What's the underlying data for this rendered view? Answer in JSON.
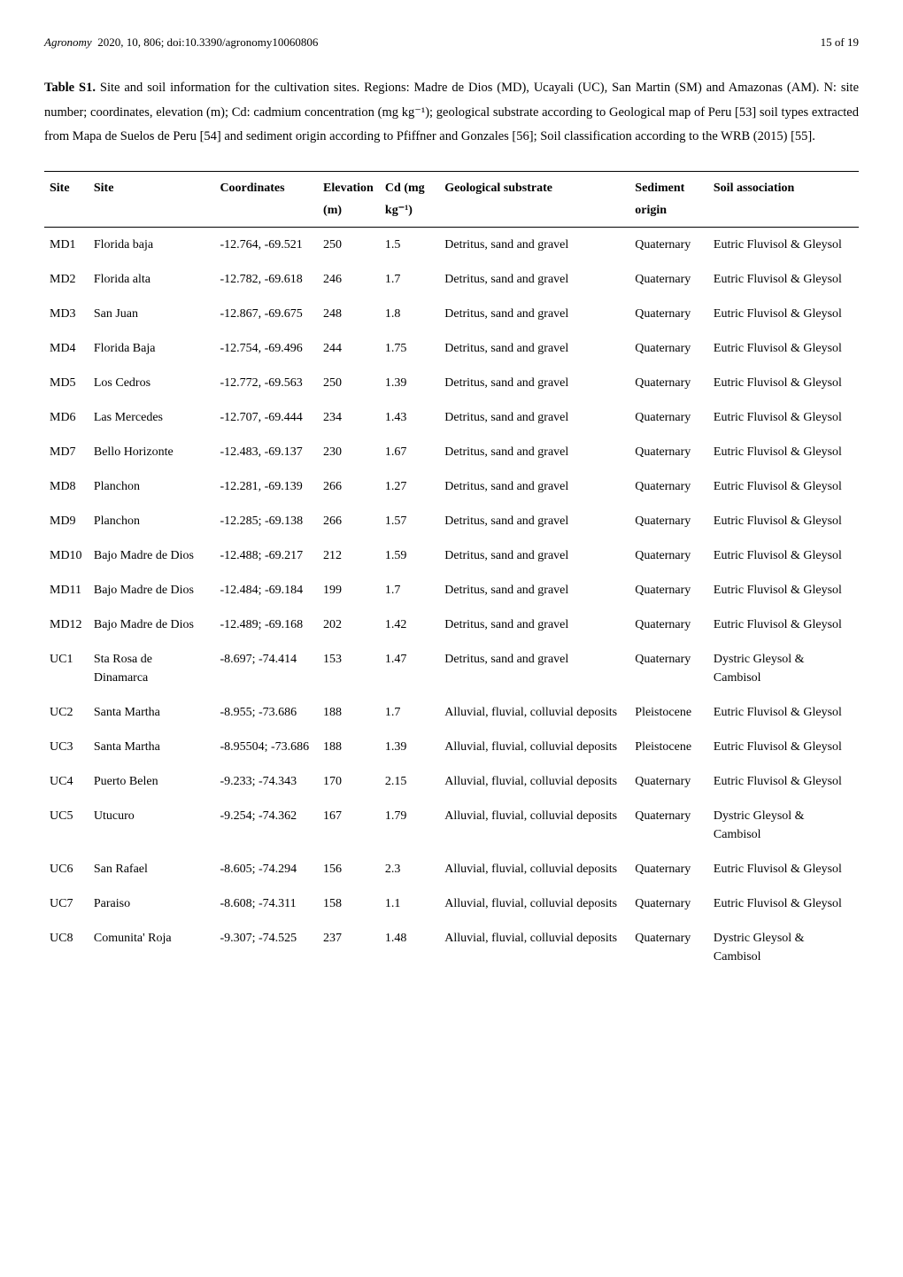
{
  "header": {
    "journal": "Agronomy",
    "year_vol_page": "2020, 10, 806; doi:10.3390/agronomy10060806",
    "page_info": "15 of 19"
  },
  "caption": {
    "label": "Table S1.",
    "text": "Site and soil information for the cultivation sites. Regions: Madre de Dios (MD), Ucayali (UC), San Martin (SM) and Amazonas (AM). N: site number; coordinates, elevation (m); Cd: cadmium concentration (mg kg⁻¹); geological substrate according to Geological map of Peru [53] soil types extracted from Mapa de Suelos de Peru [54] and sediment origin according to Pfiffner and Gonzales [56]; Soil classification according to the WRB (2015) [55]."
  },
  "columns": {
    "site_id": "Site",
    "site_name": "Site",
    "coordinates": "Coordinates",
    "elevation": "Elevation",
    "elevation_unit": "(m)",
    "cd": "Cd (mg",
    "cd_unit": "kg⁻¹)",
    "geo": "Geological substrate",
    "sediment": "Sediment",
    "sediment_sub": "origin",
    "soil": "Soil association"
  },
  "rows": [
    {
      "id": "MD1",
      "name": "Florida baja",
      "coords": "-12.764, -69.521",
      "elev": "250",
      "cd": "1.5",
      "geo": "Detritus, sand and gravel",
      "sed": "Quaternary",
      "soil": "Eutric Fluvisol & Gleysol"
    },
    {
      "id": "MD2",
      "name": "Florida alta",
      "coords": "-12.782, -69.618",
      "elev": "246",
      "cd": "1.7",
      "geo": "Detritus, sand and gravel",
      "sed": "Quaternary",
      "soil": "Eutric Fluvisol & Gleysol"
    },
    {
      "id": "MD3",
      "name": "San Juan",
      "coords": "-12.867, -69.675",
      "elev": "248",
      "cd": "1.8",
      "geo": "Detritus, sand and gravel",
      "sed": "Quaternary",
      "soil": "Eutric Fluvisol & Gleysol"
    },
    {
      "id": "MD4",
      "name": "Florida Baja",
      "coords": "-12.754, -69.496",
      "elev": "244",
      "cd": "1.75",
      "geo": "Detritus, sand and gravel",
      "sed": "Quaternary",
      "soil": "Eutric Fluvisol & Gleysol"
    },
    {
      "id": "MD5",
      "name": "Los Cedros",
      "coords": "-12.772, -69.563",
      "elev": "250",
      "cd": "1.39",
      "geo": "Detritus, sand and gravel",
      "sed": "Quaternary",
      "soil": "Eutric Fluvisol & Gleysol"
    },
    {
      "id": "MD6",
      "name": "Las Mercedes",
      "coords": "-12.707, -69.444",
      "elev": "234",
      "cd": "1.43",
      "geo": "Detritus, sand and gravel",
      "sed": "Quaternary",
      "soil": "Eutric Fluvisol & Gleysol"
    },
    {
      "id": "MD7",
      "name": "Bello Horizonte",
      "coords": "-12.483, -69.137",
      "elev": "230",
      "cd": "1.67",
      "geo": "Detritus, sand and gravel",
      "sed": "Quaternary",
      "soil": "Eutric Fluvisol & Gleysol"
    },
    {
      "id": "MD8",
      "name": "Planchon",
      "coords": "-12.281, -69.139",
      "elev": "266",
      "cd": "1.27",
      "geo": "Detritus, sand and gravel",
      "sed": "Quaternary",
      "soil": "Eutric Fluvisol & Gleysol"
    },
    {
      "id": "MD9",
      "name": "Planchon",
      "coords": "-12.285; -69.138",
      "elev": "266",
      "cd": "1.57",
      "geo": "Detritus, sand and gravel",
      "sed": "Quaternary",
      "soil": "Eutric Fluvisol & Gleysol"
    },
    {
      "id": "MD10",
      "name": "Bajo Madre de Dios",
      "coords": "-12.488; -69.217",
      "elev": "212",
      "cd": "1.59",
      "geo": "Detritus, sand and gravel",
      "sed": "Quaternary",
      "soil": "Eutric Fluvisol & Gleysol"
    },
    {
      "id": "MD11",
      "name": "Bajo Madre de Dios",
      "coords": "-12.484; -69.184",
      "elev": "199",
      "cd": "1.7",
      "geo": "Detritus, sand and gravel",
      "sed": "Quaternary",
      "soil": "Eutric Fluvisol & Gleysol"
    },
    {
      "id": "MD12",
      "name": "Bajo Madre de Dios",
      "coords": "-12.489; -69.168",
      "elev": "202",
      "cd": "1.42",
      "geo": "Detritus, sand and gravel",
      "sed": "Quaternary",
      "soil": "Eutric Fluvisol & Gleysol"
    },
    {
      "id": "UC1",
      "name": "Sta Rosa de Dinamarca",
      "coords": "-8.697; -74.414",
      "elev": "153",
      "cd": "1.47",
      "geo": "Detritus, sand and gravel",
      "sed": "Quaternary",
      "soil": "Dystric Gleysol & Cambisol"
    },
    {
      "id": "UC2",
      "name": "Santa Martha",
      "coords": "-8.955; -73.686",
      "elev": "188",
      "cd": "1.7",
      "geo": "Alluvial, fluvial, colluvial deposits",
      "sed": "Pleistocene",
      "soil": "Eutric Fluvisol & Gleysol"
    },
    {
      "id": "UC3",
      "name": "Santa Martha",
      "coords": "-8.95504; -73.686",
      "elev": "188",
      "cd": "1.39",
      "geo": "Alluvial, fluvial, colluvial deposits",
      "sed": "Pleistocene",
      "soil": "Eutric Fluvisol & Gleysol"
    },
    {
      "id": "UC4",
      "name": "Puerto Belen",
      "coords": "-9.233; -74.343",
      "elev": "170",
      "cd": "2.15",
      "geo": "Alluvial, fluvial, colluvial deposits",
      "sed": "Quaternary",
      "soil": "Eutric Fluvisol & Gleysol"
    },
    {
      "id": "UC5",
      "name": "Utucuro",
      "coords": "-9.254; -74.362",
      "elev": "167",
      "cd": "1.79",
      "geo": "Alluvial, fluvial, colluvial deposits",
      "sed": "Quaternary",
      "soil": "Dystric Gleysol & Cambisol"
    },
    {
      "id": "UC6",
      "name": "San Rafael",
      "coords": "-8.605; -74.294",
      "elev": "156",
      "cd": "2.3",
      "geo": "Alluvial, fluvial, colluvial deposits",
      "sed": "Quaternary",
      "soil": "Eutric Fluvisol & Gleysol"
    },
    {
      "id": "UC7",
      "name": "Paraiso",
      "coords": "-8.608; -74.311",
      "elev": "158",
      "cd": "1.1",
      "geo": "Alluvial, fluvial, colluvial deposits",
      "sed": "Quaternary",
      "soil": "Eutric Fluvisol & Gleysol"
    },
    {
      "id": "UC8",
      "name": "Comunita' Roja",
      "coords": "-9.307; -74.525",
      "elev": "237",
      "cd": "1.48",
      "geo": "Alluvial, fluvial, colluvial deposits",
      "sed": "Quaternary",
      "soil": "Dystric Gleysol & Cambisol"
    }
  ]
}
